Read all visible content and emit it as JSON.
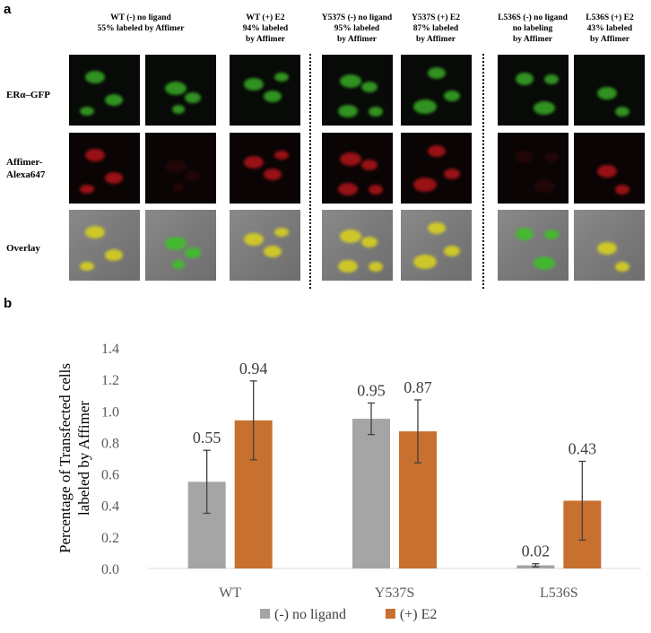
{
  "panel_a": {
    "label": "a",
    "columns": [
      {
        "header": "WT (-) no ligand\n55% labeled by Affimer"
      },
      {
        "header": "WT (+) E2\n94% labeled\nby Affimer"
      },
      {
        "header": "Y537S (-) no ligand\n95% labeled\nby Affimer"
      },
      {
        "header": "Y537S (+) E2\n87% labeled\nby Affimer"
      },
      {
        "header": "L536S (-) no ligand\nno labeling\nby Affimer"
      },
      {
        "header": "L536S (+) E2\n43% labeled\nby Affimer"
      }
    ],
    "rows": [
      {
        "label": "ERα–GFP",
        "color": "#3fbf2a"
      },
      {
        "label": "Affimer-\nAlexa647",
        "color": "#c8161b"
      },
      {
        "label": "Overlay",
        "color": "#d8d020"
      }
    ]
  },
  "panel_b": {
    "label": "b"
  },
  "chart_data": {
    "type": "bar",
    "categories": [
      "WT",
      "Y537S",
      "L536S"
    ],
    "series": [
      {
        "name": "(-) no ligand",
        "color": "#a5a5a5",
        "values": [
          0.55,
          0.95,
          0.02
        ],
        "errors": [
          0.2,
          0.1,
          0.01
        ],
        "labels": [
          "0.55",
          "0.95",
          "0.02"
        ]
      },
      {
        "name": "(+) E2",
        "color": "#c8702f",
        "values": [
          0.94,
          0.87,
          0.43
        ],
        "errors": [
          0.25,
          0.2,
          0.25
        ],
        "labels": [
          "0.94",
          "0.87",
          "0.43"
        ]
      }
    ],
    "ylabel": "Percentage  of Transfected cells\nlabeled by Affimer",
    "ylim": [
      0,
      1.4
    ],
    "yticks": [
      "0.0",
      "0.2",
      "0.4",
      "0.6",
      "0.8",
      "1.0",
      "1.2",
      "1.4"
    ],
    "grid": false,
    "legend": "bottom"
  }
}
